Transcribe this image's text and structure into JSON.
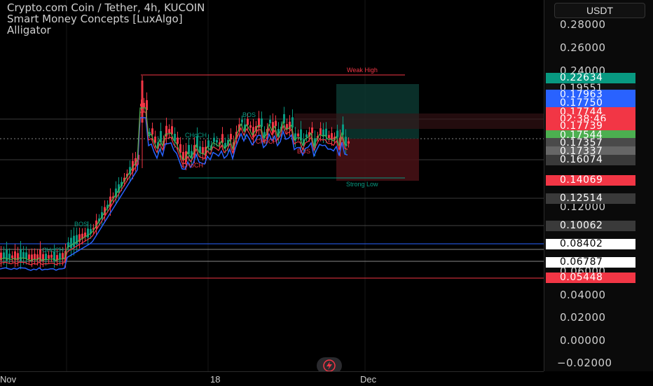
{
  "header": {
    "title": "Crypto.com Coin / Tether, 4h, KUCOIN",
    "indicator_1": "Smart Money Concepts [LuxAlgo]",
    "indicator_2": "Alligator"
  },
  "currency_button": "USDT",
  "price_axis": {
    "labels": [
      "0.28000",
      "0.26000",
      "0.24000",
      "0.12000",
      "0.06000",
      "0.04000",
      "0.02000",
      "0.00000",
      "−0.02000"
    ]
  },
  "price_tags": [
    {
      "value": "0.22634",
      "bg": "#089981",
      "fg": "#ffffff"
    },
    {
      "value": "0.19551",
      "bg": "#111111",
      "fg": "#e0e0e0"
    },
    {
      "value": "0.17963",
      "bg": "#2962ff",
      "fg": "#ffffff"
    },
    {
      "value": "0.17750",
      "bg": "#2962ff",
      "fg": "#ffffff"
    },
    {
      "value": "0.17744",
      "bg": "#f23645",
      "fg": "#ffffff"
    },
    {
      "value": "02:38:46",
      "bg": "#f23645",
      "fg": "#ffffff"
    },
    {
      "value": "0.17739",
      "bg": "#f23645",
      "fg": "#ffffff"
    },
    {
      "value": "0.17544",
      "bg": "#4caf50",
      "fg": "#ffffff"
    },
    {
      "value": "0.17357",
      "bg": "#4a4a4a",
      "fg": "#ffffff"
    },
    {
      "value": "0.17337",
      "bg": "#666666",
      "fg": "#ffffff"
    },
    {
      "value": "0.16074",
      "bg": "#3a3a3a",
      "fg": "#ffffff"
    },
    {
      "value": "0.14069",
      "bg": "#f23645",
      "fg": "#ffffff"
    },
    {
      "value": "0.12514",
      "bg": "#3a3a3a",
      "fg": "#ffffff"
    },
    {
      "value": "0.10062",
      "bg": "#3a3a3a",
      "fg": "#ffffff"
    },
    {
      "value": "0.08402",
      "bg": "#ffffff",
      "fg": "#000000"
    },
    {
      "value": "0.06787",
      "bg": "#ffffff",
      "fg": "#000000"
    },
    {
      "value": "0.05448",
      "bg": "#f23645",
      "fg": "#ffffff"
    }
  ],
  "time_axis": [
    "Nov",
    "18",
    "Dec"
  ],
  "annotations": {
    "weak_high": "Weak High",
    "strong_low": "Strong Low",
    "bos_1": "BOS",
    "bos_2": "BOS",
    "choch_1": "CHoCH",
    "choch_2": "CHoCH",
    "choch_3": "CHoCH",
    "choch_4": "CHoCH",
    "bos_3": "BOS"
  },
  "colors": {
    "up": "#089981",
    "down": "#f23645",
    "jaw": "#2962ff",
    "teeth": "#f23645",
    "lips": "#4caf50",
    "weak_high": "#f23645",
    "strong_low": "#089981"
  },
  "icons": {
    "tv_button": "lightning-icon"
  }
}
